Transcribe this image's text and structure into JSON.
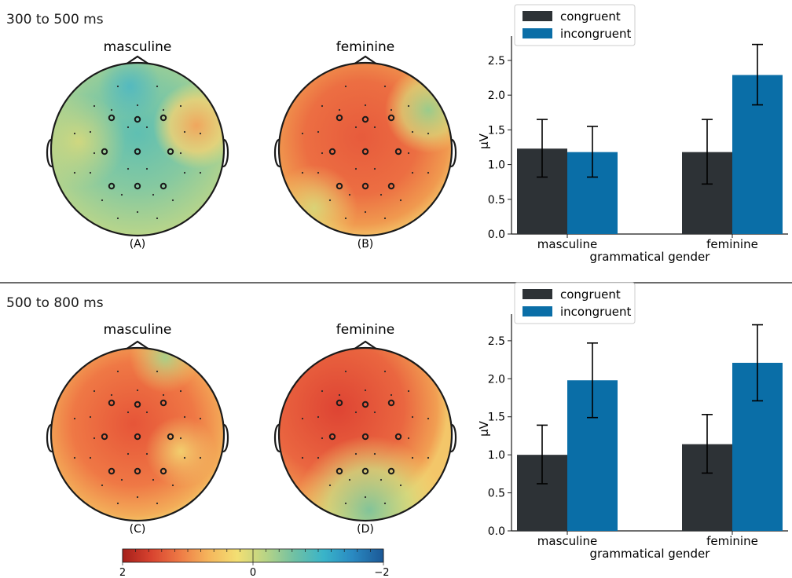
{
  "panels": [
    {
      "time_window": "300 to 500 ms",
      "maps": [
        {
          "title": "masculine",
          "letter": "(A)"
        },
        {
          "title": "feminine",
          "letter": "(B)"
        }
      ]
    },
    {
      "time_window": "500 to 800 ms",
      "maps": [
        {
          "title": "masculine",
          "letter": "(C)"
        },
        {
          "title": "feminine",
          "letter": "(D)"
        }
      ]
    }
  ],
  "colorbar": {
    "ticks": [
      "2",
      "0",
      "−2"
    ],
    "colors": [
      "#a51f1a",
      "#d8432f",
      "#ee7a45",
      "#f5b65c",
      "#f3df73",
      "#b7d486",
      "#6fc0a4",
      "#39b4c9",
      "#2a8ac2",
      "#1b5896"
    ]
  },
  "colors": {
    "congruent": "#2d3236",
    "incongruent": "#0a6ea7"
  },
  "chart_data": [
    {
      "type": "bar",
      "categories": [
        "masculine",
        "feminine"
      ],
      "xlabel": "grammatical gender",
      "ylabel": "µV",
      "ylim": [
        0,
        2.85
      ],
      "yticks": [
        "0.0",
        "0.5",
        "1.0",
        "1.5",
        "2.0",
        "2.5"
      ],
      "legend_position": "top-left",
      "series": [
        {
          "name": "congruent",
          "values": [
            1.23,
            1.18
          ],
          "err_low": [
            0.82,
            0.72
          ],
          "err_high": [
            1.65,
            1.65
          ]
        },
        {
          "name": "incongruent",
          "values": [
            1.18,
            2.29
          ],
          "err_low": [
            0.82,
            1.86
          ],
          "err_high": [
            1.55,
            2.73
          ]
        }
      ]
    },
    {
      "type": "bar",
      "categories": [
        "masculine",
        "feminine"
      ],
      "xlabel": "grammatical gender",
      "ylabel": "µV",
      "ylim": [
        0,
        2.85
      ],
      "yticks": [
        "0.0",
        "0.5",
        "1.0",
        "1.5",
        "2.0",
        "2.5"
      ],
      "legend_position": "top-left",
      "series": [
        {
          "name": "congruent",
          "values": [
            1.0,
            1.14
          ],
          "err_low": [
            0.62,
            0.76
          ],
          "err_high": [
            1.39,
            1.53
          ]
        },
        {
          "name": "incongruent",
          "values": [
            1.98,
            2.21
          ],
          "err_low": [
            1.49,
            1.71
          ],
          "err_high": [
            2.47,
            2.71
          ]
        }
      ]
    }
  ]
}
